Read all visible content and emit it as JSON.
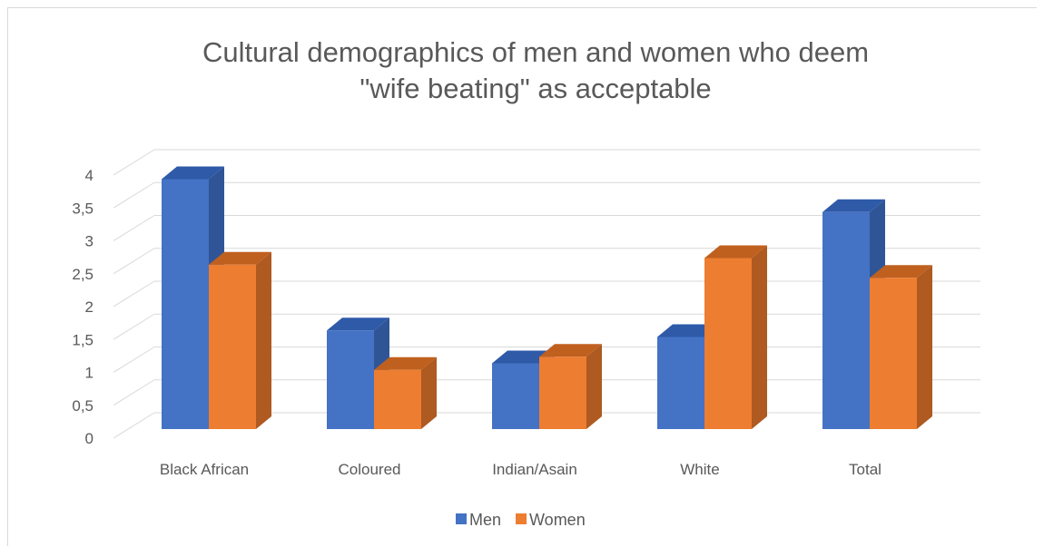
{
  "chart_data": {
    "type": "bar",
    "title_lines": [
      "Cultural demographics of men and women who deem",
      "\"wife beating\" as acceptable"
    ],
    "xlabel": "",
    "ylabel": "",
    "categories": [
      "Black African",
      "Coloured",
      "Indian/Asain",
      "White",
      "Total"
    ],
    "series": [
      {
        "name": "Men",
        "values": [
          3.8,
          1.5,
          1.0,
          1.4,
          3.3
        ],
        "color": "#4472C4",
        "side_color": "#2F5597",
        "top_color": "#2E5AA8"
      },
      {
        "name": "Women",
        "values": [
          2.5,
          0.9,
          1.1,
          2.6,
          2.3
        ],
        "color": "#ED7D31",
        "side_color": "#AE5A21",
        "top_color": "#C0601F"
      }
    ],
    "ylim": [
      0,
      4
    ],
    "yticks": [
      "0",
      "0,5",
      "1",
      "1,5",
      "2",
      "2,5",
      "3",
      "3,5",
      "4"
    ],
    "grid": true,
    "legend_position": "bottom",
    "view": "3d-clustered-column"
  }
}
